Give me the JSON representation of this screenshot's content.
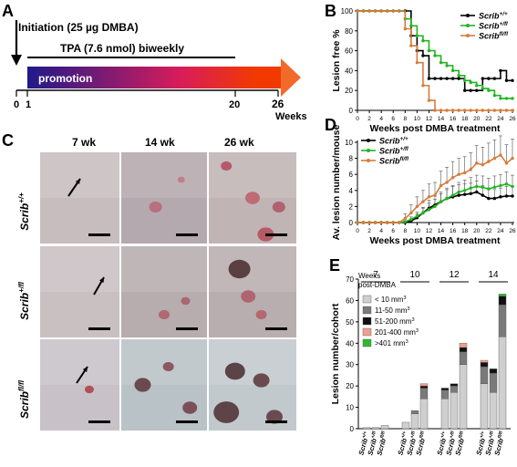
{
  "panels": {
    "a": "A",
    "b": "B",
    "c": "C",
    "d": "D",
    "e": "E"
  },
  "panel_a": {
    "initiation": "Initiation (25 µg DMBA)",
    "tpa": "TPA (7.6 nmol) biweekly",
    "promotion": "promotion",
    "ticks": [
      "0",
      "1",
      "20",
      "26"
    ],
    "weeks": "Weeks",
    "gradient_colors": [
      "#1f1a8a",
      "#d81c5a",
      "#f23a00",
      "#f26a2a"
    ]
  },
  "panel_c": {
    "columns": [
      "7 wk",
      "14 wk",
      "26 wk"
    ],
    "rows": [
      "Scrib+/+",
      "Scrib+/fl",
      "Scribfl/fl"
    ],
    "rows_base": [
      "Scrib",
      "Scrib",
      "Scrib"
    ],
    "rows_sup": [
      "+/+",
      "+/fl",
      "fl/fl"
    ]
  },
  "chart_data": [
    {
      "type": "line",
      "title": "",
      "xlabel": "Weeks post DMBA treatment",
      "ylabel": "Lesion free %",
      "xlim": [
        0,
        26
      ],
      "ylim": [
        0,
        100
      ],
      "xticks": [
        0,
        2,
        4,
        6,
        8,
        10,
        12,
        14,
        16,
        18,
        20,
        22,
        24,
        26
      ],
      "yticks": [
        0,
        20,
        40,
        60,
        80,
        100
      ],
      "legend_position": "top-right",
      "x": [
        0,
        1,
        2,
        3,
        4,
        5,
        6,
        7,
        8,
        9,
        10,
        11,
        12,
        13,
        14,
        15,
        16,
        17,
        18,
        19,
        20,
        21,
        22,
        23,
        24,
        25,
        26
      ],
      "series": [
        {
          "name": "Scrib+/+",
          "base": "Scrib",
          "sup": "+/+",
          "color": "#000000",
          "values": [
            100,
            100,
            100,
            100,
            100,
            100,
            100,
            100,
            100,
            75,
            60,
            55,
            32,
            32,
            32,
            32,
            32,
            32,
            20,
            20,
            20,
            32,
            32,
            32,
            40,
            30,
            30
          ]
        },
        {
          "name": "Scrib+/fl",
          "base": "Scrib",
          "sup": "+/fl",
          "color": "#22b422",
          "values": [
            100,
            100,
            100,
            100,
            100,
            100,
            100,
            100,
            92,
            85,
            75,
            70,
            60,
            55,
            48,
            45,
            40,
            35,
            30,
            28,
            25,
            22,
            20,
            15,
            12,
            12,
            12
          ]
        },
        {
          "name": "Scribfl/fl",
          "base": "Scrib",
          "sup": "fl/fl",
          "color": "#d67c3a",
          "values": [
            100,
            100,
            100,
            100,
            100,
            100,
            100,
            100,
            82,
            65,
            48,
            25,
            10,
            0,
            0,
            0,
            0,
            0,
            0,
            0,
            0,
            0,
            0,
            0,
            0,
            0,
            0
          ]
        }
      ]
    },
    {
      "type": "line",
      "title": "",
      "xlabel": "Weeks post DMBA treatment",
      "ylabel": "Av. lesion number/mouse",
      "xlim": [
        0,
        26
      ],
      "ylim": [
        0,
        10
      ],
      "xticks": [
        0,
        2,
        4,
        6,
        8,
        10,
        12,
        14,
        16,
        18,
        20,
        22,
        24,
        26
      ],
      "yticks": [
        0,
        2,
        4,
        6,
        8,
        10
      ],
      "legend_position": "top-left",
      "x": [
        0,
        1,
        2,
        3,
        4,
        5,
        6,
        7,
        8,
        9,
        10,
        11,
        12,
        13,
        14,
        15,
        16,
        17,
        18,
        19,
        20,
        21,
        22,
        23,
        24,
        25,
        26
      ],
      "series": [
        {
          "name": "Scrib+/+",
          "base": "Scrib",
          "sup": "+/+",
          "color": "#000000",
          "values": [
            0,
            0,
            0,
            0,
            0,
            0,
            0,
            0,
            0,
            0.2,
            0.6,
            1.2,
            1.8,
            2.2,
            2.6,
            3,
            3.2,
            3.4,
            3.5,
            3.6,
            3.8,
            3.4,
            3,
            3,
            3.2,
            3.3,
            3.3
          ],
          "errors": [
            0,
            0,
            0,
            0,
            0,
            0,
            0,
            0,
            0,
            0.2,
            0.5,
            0.7,
            1,
            1.1,
            1.2,
            1.3,
            1.3,
            1.3,
            1.3,
            1.3,
            1.4,
            1.2,
            1.1,
            1.1,
            1.1,
            1.2,
            1.2
          ]
        },
        {
          "name": "Scrib+/fl",
          "base": "Scrib",
          "sup": "+/fl",
          "color": "#22b422",
          "values": [
            0,
            0,
            0,
            0,
            0,
            0,
            0,
            0,
            0.1,
            0.4,
            0.8,
            1.2,
            1.6,
            2,
            2.6,
            3,
            3.4,
            3.8,
            4,
            4.3,
            4.5,
            4.4,
            4.2,
            4.4,
            4.6,
            4.8,
            4.5
          ],
          "errors": [
            0,
            0,
            0,
            0,
            0,
            0,
            0,
            0,
            0.1,
            0.3,
            0.5,
            0.6,
            0.8,
            0.9,
            1,
            1.1,
            1.2,
            1.2,
            1.3,
            1.3,
            1.4,
            1.4,
            1.3,
            1.4,
            1.4,
            1.5,
            1.4
          ]
        },
        {
          "name": "Scribfl/fl",
          "base": "Scrib",
          "sup": "fl/fl",
          "color": "#d67c3a",
          "values": [
            0,
            0,
            0,
            0,
            0,
            0,
            0,
            0,
            0.5,
            1.2,
            2,
            2.6,
            3.2,
            3.4,
            4.6,
            5,
            5.6,
            6,
            6.2,
            6.6,
            7.4,
            7.2,
            7.6,
            8,
            8.4,
            7.4,
            8
          ],
          "errors": [
            0,
            0,
            0,
            0,
            0,
            0,
            0,
            0,
            0.6,
            1,
            1.2,
            1.4,
            1.6,
            1.6,
            1.8,
            1.9,
            2,
            2,
            2,
            2.1,
            2.2,
            2.2,
            2.3,
            2.3,
            2.4,
            2.3,
            2.4
          ]
        }
      ]
    },
    {
      "type": "bar",
      "stacked": true,
      "title": "",
      "header": "Weeks post-DMBA",
      "ylabel": "Lesion number/cohort",
      "ylim": [
        0,
        70
      ],
      "yticks": [
        0,
        10,
        20,
        30,
        40,
        50,
        60,
        70
      ],
      "groups": [
        "7",
        "10",
        "12",
        "14"
      ],
      "genotype_base": [
        "Scrib",
        "Scrib",
        "Scrib"
      ],
      "genotype_sup": [
        "+/+",
        "+/fl",
        "fl/fl"
      ],
      "size_classes": [
        {
          "name": "< 10 mm3",
          "base": "< 10 mm",
          "sup": "3",
          "color": "#cfcfcf"
        },
        {
          "name": "11-50 mm3",
          "base": "11-50 mm",
          "sup": "3",
          "color": "#7a7a7a"
        },
        {
          "name": "51-200 mm3",
          "base": "51-200 mm",
          "sup": "3",
          "color": "#111111"
        },
        {
          "name": "201-400 mm3",
          "base": "201-400 mm",
          "sup": "3",
          "color": "#f0a090"
        },
        {
          "name": ">401 mm3",
          "base": ">401 mm",
          "sup": "3",
          "color": "#2eb82e"
        }
      ],
      "bars": [
        {
          "group": "7",
          "genotype": "Scrib+/+",
          "values": [
            0.5,
            0,
            0,
            0,
            0
          ]
        },
        {
          "group": "7",
          "genotype": "Scrib+/fl",
          "values": [
            0.5,
            0,
            0,
            0,
            0
          ]
        },
        {
          "group": "7",
          "genotype": "Scribfl/fl",
          "values": [
            1.5,
            0,
            0,
            0,
            0
          ]
        },
        {
          "group": "10",
          "genotype": "Scrib+/+",
          "values": [
            3,
            0,
            0,
            0,
            0
          ]
        },
        {
          "group": "10",
          "genotype": "Scrib+/fl",
          "values": [
            7,
            1.5,
            0,
            0,
            0
          ]
        },
        {
          "group": "10",
          "genotype": "Scribfl/fl",
          "values": [
            14,
            5,
            1,
            1,
            0
          ]
        },
        {
          "group": "12",
          "genotype": "Scrib+/+",
          "values": [
            14,
            4,
            1,
            0,
            0
          ]
        },
        {
          "group": "12",
          "genotype": "Scrib+/fl",
          "values": [
            17,
            3,
            1,
            0,
            0
          ]
        },
        {
          "group": "12",
          "genotype": "Scribfl/fl",
          "values": [
            30,
            6,
            2,
            2,
            0
          ]
        },
        {
          "group": "14",
          "genotype": "Scrib+/+",
          "values": [
            21,
            8,
            2,
            1,
            0
          ]
        },
        {
          "group": "14",
          "genotype": "Scrib+/fl",
          "values": [
            17,
            9,
            2,
            0,
            0
          ]
        },
        {
          "group": "14",
          "genotype": "Scribfl/fl",
          "values": [
            43,
            15,
            4,
            0,
            1
          ]
        }
      ]
    }
  ]
}
